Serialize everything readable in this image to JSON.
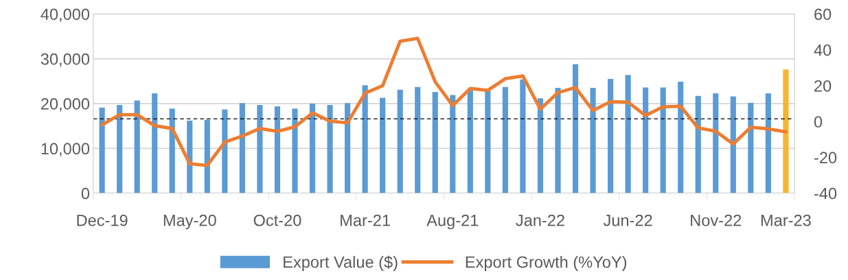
{
  "chart_data": {
    "type": "bar",
    "categories": [
      "Dec-19",
      null,
      null,
      null,
      null,
      "May-20",
      null,
      null,
      null,
      null,
      "Oct-20",
      null,
      null,
      null,
      null,
      "Mar-21",
      null,
      null,
      null,
      null,
      "Aug-21",
      null,
      null,
      null,
      null,
      "Jan-22",
      null,
      null,
      null,
      null,
      "Jun-22",
      null,
      null,
      null,
      null,
      "Nov-22",
      null,
      null,
      null,
      "Mar-23"
    ],
    "series": [
      {
        "name": "Export Value ($)",
        "color": "#5b9bd5",
        "colors": [
          "#5b9bd5",
          "#5b9bd5",
          "#5b9bd5",
          "#5b9bd5",
          "#5b9bd5",
          "#5b9bd5",
          "#5b9bd5",
          "#5b9bd5",
          "#5b9bd5",
          "#5b9bd5",
          "#5b9bd5",
          "#5b9bd5",
          "#5b9bd5",
          "#5b9bd5",
          "#5b9bd5",
          "#5b9bd5",
          "#5b9bd5",
          "#5b9bd5",
          "#5b9bd5",
          "#5b9bd5",
          "#5b9bd5",
          "#5b9bd5",
          "#5b9bd5",
          "#5b9bd5",
          "#5b9bd5",
          "#5b9bd5",
          "#5b9bd5",
          "#5b9bd5",
          "#5b9bd5",
          "#5b9bd5",
          "#5b9bd5",
          "#5b9bd5",
          "#5b9bd5",
          "#5b9bd5",
          "#5b9bd5",
          "#5b9bd5",
          "#5b9bd5",
          "#5b9bd5",
          "#5b9bd5",
          "#f9b42d"
        ],
        "values": [
          19100,
          19700,
          20700,
          22300,
          18900,
          16200,
          16400,
          18700,
          20100,
          19700,
          19400,
          18900,
          20000,
          19700,
          20100,
          24100,
          21300,
          23100,
          23700,
          22600,
          21900,
          23000,
          22900,
          23700,
          25400,
          21200,
          23500,
          28800,
          23500,
          25500,
          26400,
          23600,
          23600,
          24900,
          21700,
          22300,
          21600,
          20200,
          22300,
          27600
        ]
      },
      {
        "name": "Export Growth (%YoY)",
        "type": "line",
        "axis": "y2",
        "color": "#ed7d31",
        "values": [
          -1.8,
          3.8,
          3.8,
          -2.3,
          -3.9,
          -23.6,
          -24.5,
          -11.5,
          -8.1,
          -3.9,
          -5.5,
          -3.0,
          4.8,
          0.2,
          -0.7,
          15.8,
          19.9,
          44.8,
          46.4,
          22.2,
          8.9,
          18.4,
          17.4,
          23.9,
          25.4,
          6.9,
          16.1,
          19.0,
          6.1,
          11.1,
          10.8,
          3.4,
          8.2,
          8.5,
          -3.6,
          -5.4,
          -12.5,
          -3.2,
          -4.1,
          -5.8
        ]
      }
    ],
    "ylim": [
      0,
      40000
    ],
    "yticks": [
      {
        "value": 0,
        "label": "0"
      },
      {
        "value": 10000,
        "label": "10,000"
      },
      {
        "value": 20000,
        "label": "20,000"
      },
      {
        "value": 30000,
        "label": "30,000"
      },
      {
        "value": 40000,
        "label": "40,000"
      }
    ],
    "y2lim": [
      -40,
      60
    ],
    "y2ticks": [
      -40,
      -20,
      0,
      20,
      40,
      60
    ],
    "ref_lines": [
      {
        "axis": "y2",
        "value": 1.5,
        "color": "#000000",
        "line_style": "dashed"
      }
    ],
    "grid": "y",
    "legend": "bottom"
  }
}
